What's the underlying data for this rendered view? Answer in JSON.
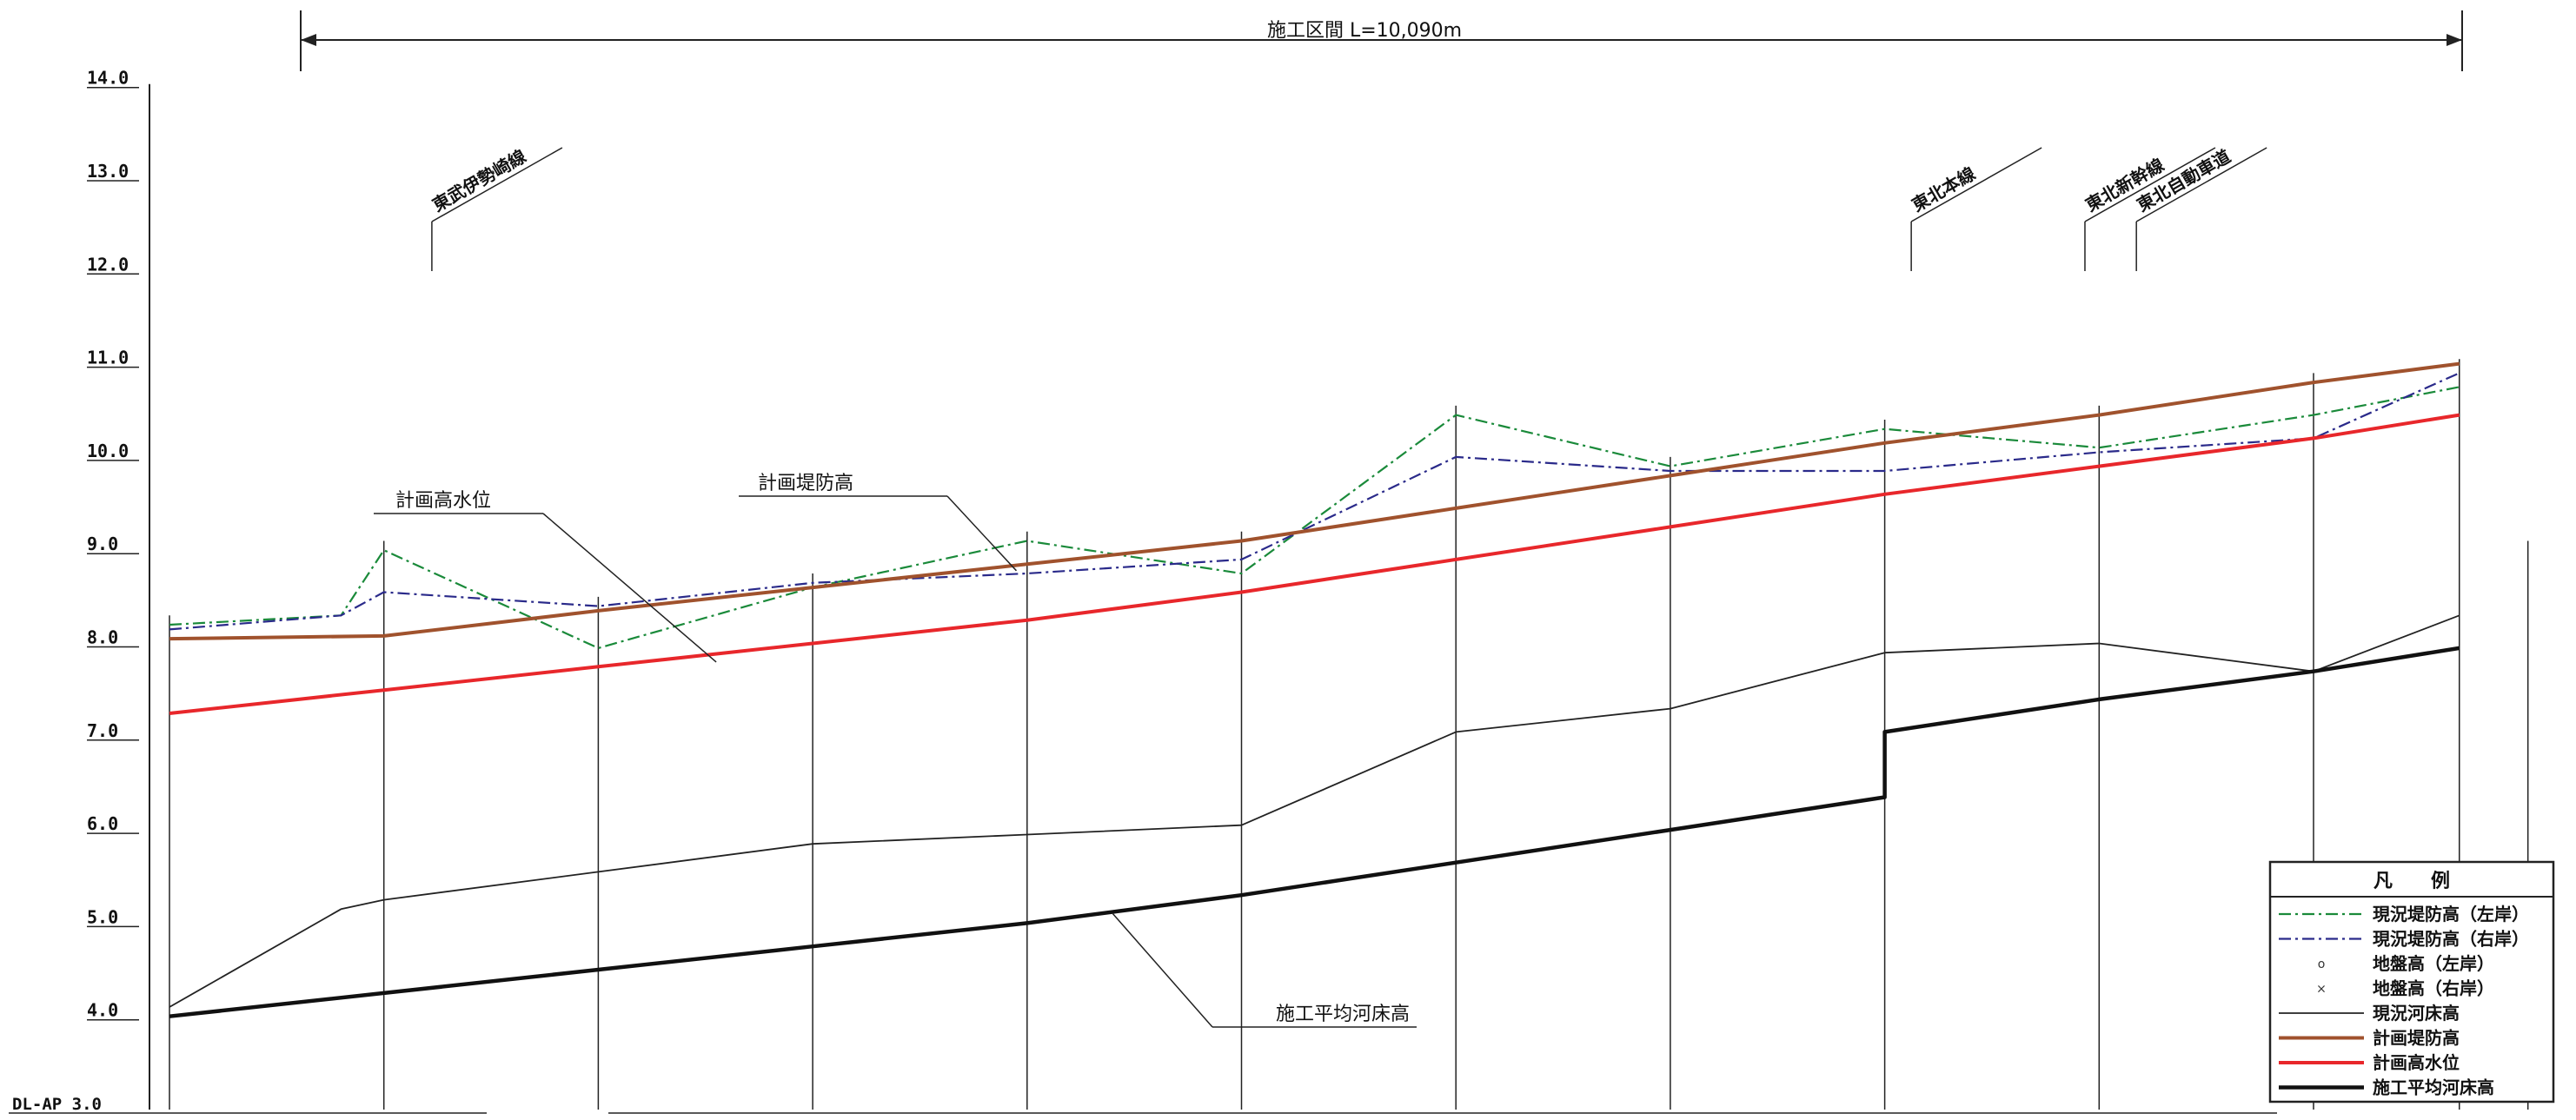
{
  "chart_data": {
    "type": "line",
    "title": "",
    "xlabel": "",
    "ylabel": "",
    "ylim": [
      3.0,
      14.0
    ],
    "y_ticks": [
      "14.0",
      "13.0",
      "12.0",
      "11.0",
      "10.0",
      "9.0",
      "8.0",
      "7.0",
      "6.0",
      "5.0",
      "4.0"
    ],
    "datum_label": "DL-AP  3.0",
    "section_span_label": "施工区間 L=10,090m",
    "x_stations": [
      0,
      1,
      2,
      3,
      4,
      5,
      6,
      7,
      8,
      9,
      10,
      11
    ],
    "series": [
      {
        "name": "現況堤防高（左岸）",
        "style": "dash-dot",
        "color": "#1a8a3a",
        "x": [
          0,
          0.8,
          1,
          2,
          3,
          4,
          5,
          6,
          7,
          8,
          9,
          10,
          10.68
        ],
        "y": [
          8.2,
          8.3,
          9.0,
          7.95,
          8.6,
          9.1,
          8.75,
          10.45,
          9.9,
          10.3,
          10.1,
          10.45,
          10.75
        ]
      },
      {
        "name": "現況堤防高（右岸）",
        "style": "dash-dot",
        "color": "#2a2a8a",
        "x": [
          0,
          0.8,
          1,
          2,
          3,
          4,
          5,
          6,
          7,
          8,
          9,
          10,
          10.68
        ],
        "y": [
          8.15,
          8.3,
          8.55,
          8.4,
          8.65,
          8.75,
          8.9,
          10.0,
          9.85,
          9.85,
          10.05,
          10.2,
          10.9
        ]
      },
      {
        "name": "地盤高（左岸）",
        "style": "points",
        "color": "#333333",
        "x": [],
        "y": []
      },
      {
        "name": "地盤高（右岸）",
        "style": "points",
        "color": "#333333",
        "x": [],
        "y": []
      },
      {
        "name": "現況河床高",
        "style": "thin",
        "color": "#222222",
        "x": [
          0,
          0.8,
          1,
          2,
          3,
          4,
          5,
          6,
          7,
          8,
          9,
          10,
          10.68
        ],
        "y": [
          4.1,
          5.15,
          5.25,
          5.55,
          5.85,
          5.95,
          6.05,
          7.05,
          7.3,
          7.9,
          8.0,
          7.7,
          8.3
        ]
      },
      {
        "name": "計画堤防高",
        "style": "thick",
        "color": "#a0522d",
        "x": [
          0,
          1,
          2,
          3,
          4,
          5,
          6,
          7,
          8,
          9,
          10,
          10.68
        ],
        "y": [
          8.05,
          8.08,
          8.35,
          8.6,
          8.85,
          9.1,
          9.45,
          9.8,
          10.15,
          10.45,
          10.8,
          11.0
        ]
      },
      {
        "name": "計画高水位",
        "style": "thick",
        "color": "#e8272b",
        "x": [
          0,
          1,
          2,
          3,
          4,
          5,
          6,
          7,
          8,
          9,
          10,
          10.68
        ],
        "y": [
          7.25,
          7.5,
          7.75,
          8.0,
          8.25,
          8.55,
          8.9,
          9.25,
          9.6,
          9.9,
          10.2,
          10.45
        ]
      },
      {
        "name": "施工平均河床高",
        "style": "bold",
        "color": "#111111",
        "x": [
          0,
          1,
          2,
          3,
          4,
          5,
          6,
          7,
          8,
          8,
          9,
          10,
          10.68
        ],
        "y": [
          4.0,
          4.25,
          4.5,
          4.75,
          5.0,
          5.3,
          5.65,
          6.0,
          6.35,
          7.05,
          7.4,
          7.7,
          7.95
        ]
      }
    ],
    "annotations": [
      {
        "text": "計画高水位",
        "target_series": "計画高水位",
        "x": 2.55,
        "y": 7.8
      },
      {
        "text": "計画堤防高",
        "target_series": "計画堤防高",
        "x": 3.95,
        "y": 8.78
      },
      {
        "text": "施工平均河床高",
        "target_series": "施工平均河床高",
        "x": 4.4,
        "y": 5.1
      }
    ],
    "railways": [
      {
        "text": "東武伊勢崎線",
        "x": 1.24
      },
      {
        "text": "東北本線",
        "x": 8.14
      },
      {
        "text": "東北新幹線",
        "x": 8.95
      },
      {
        "text": "東北自動車道",
        "x": 9.19
      }
    ],
    "legend": {
      "title": "凡　　例",
      "position": "bottom-right",
      "items": [
        "現況堤防高（左岸）",
        "現況堤防高（右岸）",
        "地盤高（左岸）",
        "地盤高（右岸）",
        "現況河床高",
        "計画堤防高",
        "計画高水位",
        "施工平均河床高"
      ]
    },
    "grid": false
  }
}
